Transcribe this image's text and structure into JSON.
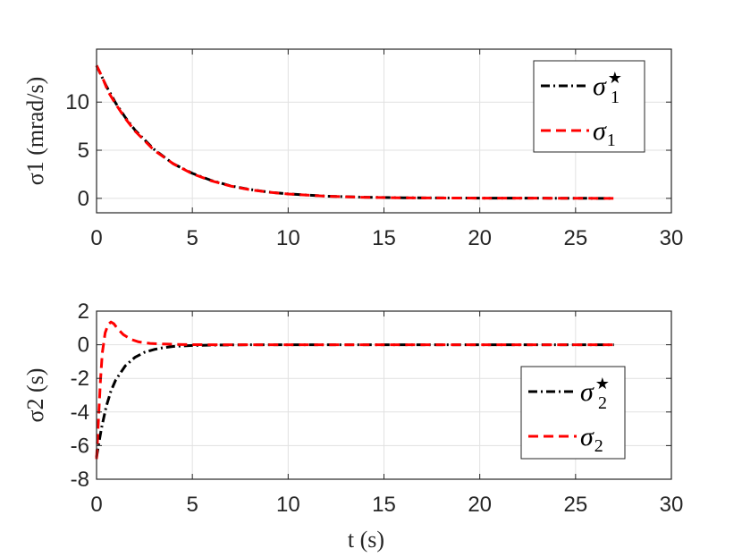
{
  "colors": {
    "reference": "#000000",
    "actual": "#ff0000",
    "grid": "#e1e1e1",
    "axes": "#262626"
  },
  "chart_data": [
    {
      "type": "line",
      "ylabel": "σ1 (mrad/s)",
      "xlabel": "",
      "xlim": [
        0,
        30
      ],
      "ylim": [
        -1.5,
        15.5
      ],
      "xticks": [
        "0",
        "5",
        "10",
        "15",
        "20",
        "25",
        "30"
      ],
      "yticks": [
        "0",
        "5",
        "10"
      ],
      "grid": true,
      "legend_position": "top-right",
      "series": [
        {
          "name": "σ1★",
          "style": "dash-dot",
          "color": "#000000",
          "x": [
            0,
            0.5,
            1,
            1.5,
            2,
            3,
            4,
            5,
            6,
            7,
            8,
            9,
            10,
            12,
            14,
            16,
            20,
            24,
            27
          ],
          "y": [
            13.8,
            11.7,
            9.9,
            8.4,
            7.1,
            5.1,
            3.6,
            2.6,
            1.85,
            1.3,
            0.92,
            0.65,
            0.46,
            0.23,
            0.12,
            0.06,
            0.02,
            0.01,
            0.0
          ]
        },
        {
          "name": "σ1",
          "style": "dashed",
          "color": "#ff0000",
          "x": [
            0,
            0.3,
            0.6,
            1,
            1.5,
            2,
            3,
            4,
            5,
            6,
            7,
            8,
            9,
            10,
            12,
            14,
            16,
            20,
            24,
            27
          ],
          "y": [
            13.8,
            12.6,
            11.1,
            9.8,
            8.3,
            7.0,
            5.0,
            3.6,
            2.55,
            1.82,
            1.28,
            0.9,
            0.64,
            0.45,
            0.22,
            0.11,
            0.05,
            0.02,
            0.01,
            0.0
          ]
        }
      ]
    },
    {
      "type": "line",
      "ylabel": "σ2 (s)",
      "xlabel": "t (s)",
      "xlim": [
        0,
        30
      ],
      "ylim": [
        -8,
        2
      ],
      "xticks": [
        "0",
        "5",
        "10",
        "15",
        "20",
        "25",
        "30"
      ],
      "yticks": [
        "-8",
        "-6",
        "-4",
        "-2",
        "0",
        "2"
      ],
      "grid": true,
      "legend_position": "bottom-right",
      "series": [
        {
          "name": "σ2★",
          "style": "dash-dot",
          "color": "#000000",
          "x": [
            0,
            0.1,
            0.25,
            0.5,
            0.75,
            1,
            1.5,
            2,
            2.5,
            3,
            3.5,
            4,
            5,
            6,
            8,
            10,
            15,
            20,
            27
          ],
          "y": [
            -6.7,
            -6.0,
            -5.0,
            -3.7,
            -2.75,
            -2.1,
            -1.25,
            -0.75,
            -0.45,
            -0.28,
            -0.17,
            -0.1,
            -0.04,
            -0.02,
            0.0,
            0.0,
            0.0,
            0.0,
            0.0
          ]
        },
        {
          "name": "σ2",
          "style": "dashed",
          "color": "#ff0000",
          "x": [
            0,
            0.1,
            0.2,
            0.3,
            0.45,
            0.6,
            0.75,
            0.9,
            1.1,
            1.4,
            1.8,
            2.2,
            2.8,
            3.5,
            4.5,
            6,
            8,
            15,
            27
          ],
          "y": [
            -6.8,
            -4.5,
            -2.2,
            -0.5,
            0.7,
            1.2,
            1.35,
            1.25,
            0.95,
            0.6,
            0.32,
            0.17,
            0.08,
            0.04,
            0.01,
            0.0,
            0.0,
            0.0,
            0.0
          ]
        }
      ]
    }
  ]
}
